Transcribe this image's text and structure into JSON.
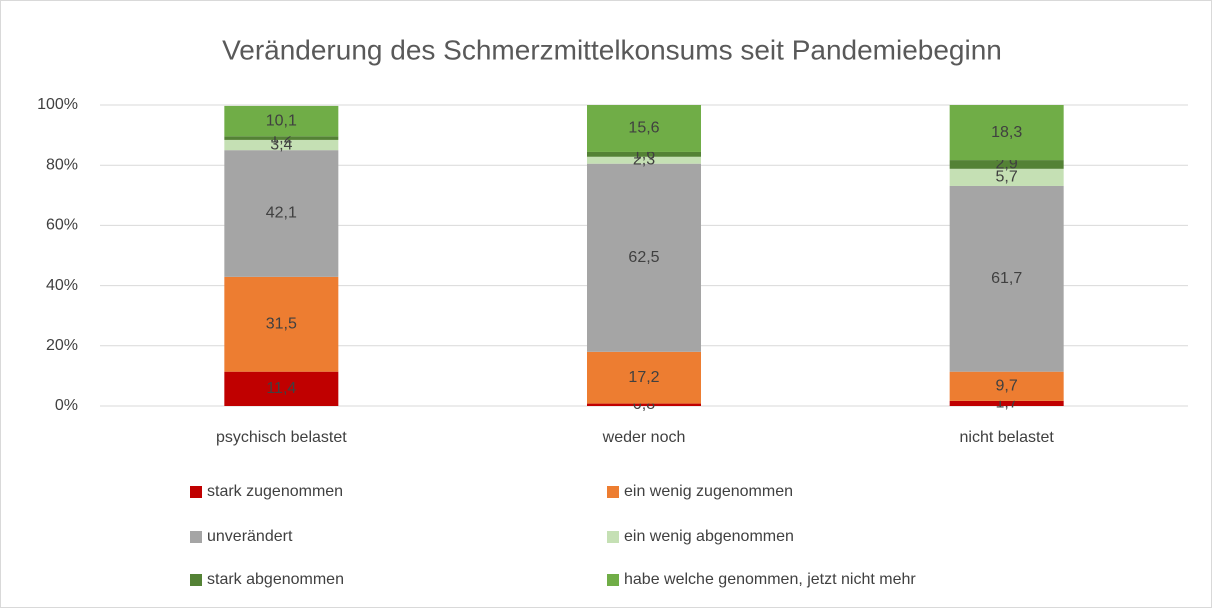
{
  "chart_data": {
    "type": "stacked_bar",
    "title": "Veränderung des Schmerzmittelkonsums seit Pandemiebeginn",
    "categories": [
      "psychisch belastet",
      "weder noch",
      "nicht belastet"
    ],
    "ylim": [
      0,
      100
    ],
    "yticks": [
      {
        "value": 0,
        "label": "0%"
      },
      {
        "value": 20,
        "label": "20%"
      },
      {
        "value": 40,
        "label": "40%"
      },
      {
        "value": 60,
        "label": "60%"
      },
      {
        "value": 80,
        "label": "80%"
      },
      {
        "value": 100,
        "label": "100%"
      }
    ],
    "grid": true,
    "legend": "bottom",
    "series": [
      {
        "name": "stark zugenommen",
        "color": "#c00000",
        "values": [
          11.4,
          0.8,
          1.7
        ],
        "value_labels": [
          "11,4",
          "0,8",
          "1,7"
        ]
      },
      {
        "name": "ein wenig zugenommen",
        "color": "#ed7d31",
        "values": [
          31.5,
          17.2,
          9.7
        ],
        "value_labels": [
          "31,5",
          "17,2",
          "9,7"
        ]
      },
      {
        "name": "unverändert",
        "color": "#a5a5a5",
        "values": [
          42.1,
          62.5,
          61.7
        ],
        "value_labels": [
          "42,1",
          "62,5",
          "61,7"
        ]
      },
      {
        "name": "ein wenig abgenommen",
        "color": "#c5e0b4",
        "values": [
          3.4,
          2.3,
          5.7
        ],
        "value_labels": [
          "3,4",
          "2,3",
          "5,7"
        ]
      },
      {
        "name": "stark abgenommen",
        "color": "#548235",
        "values": [
          1.2,
          1.6,
          2.9
        ],
        "value_labels": [
          "1,2",
          "1,6",
          "2,9"
        ]
      },
      {
        "name": "habe welche genommen, jetzt nicht mehr",
        "color": "#70ad47",
        "values": [
          10.1,
          15.6,
          18.3
        ],
        "value_labels": [
          "10,1",
          "15,6",
          "18,3"
        ]
      }
    ]
  }
}
